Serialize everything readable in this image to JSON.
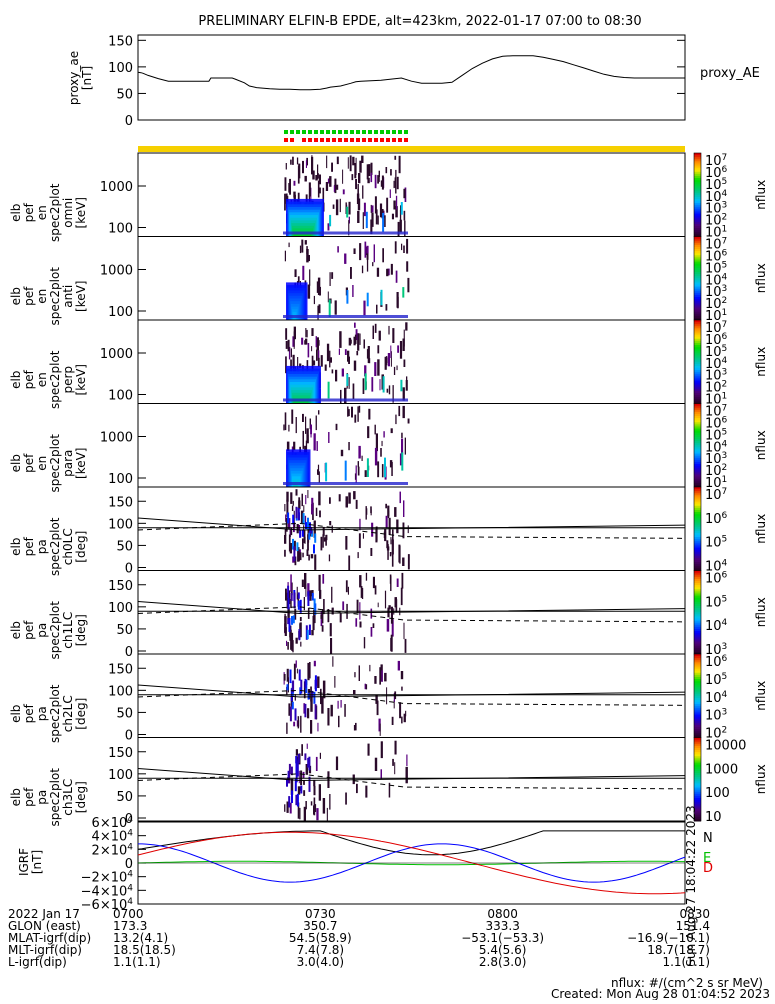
{
  "title": "PRELIMINARY ELFIN-B EPDE, alt=423km, 2022-01-17 07:00 to 08:30",
  "chart_data": [
    {
      "type": "line",
      "panel": "proxy_ae",
      "ylabel": [
        "proxy_ae",
        "[nT]"
      ],
      "legend": "proxy_AE",
      "yticks": [
        "0",
        "50",
        "100",
        "150"
      ],
      "ylim": [
        0,
        160
      ],
      "x_minutes": [
        0,
        3,
        5,
        10,
        20,
        30,
        40,
        41,
        50,
        60,
        70,
        72,
        82,
        88,
        93,
        96,
        105,
        110,
        117,
        130,
        140,
        150,
        160,
        170,
        180,
        186,
        190,
        200,
        210,
        215,
        220,
        230,
        240,
        250,
        260,
        270,
        280,
        290,
        300,
        310,
        320,
        330,
        340,
        350,
        360,
        370,
        380,
        390,
        400,
        410,
        420,
        430,
        440,
        450,
        460,
        470,
        480,
        490,
        500,
        510,
        520,
        530,
        540
      ],
      "values": [
        90,
        89,
        88,
        84,
        78,
        73,
        73,
        73,
        73,
        73,
        73,
        79,
        79,
        79,
        79,
        77,
        70,
        64,
        61,
        59,
        58,
        58,
        57,
        57,
        58,
        60,
        62,
        64,
        69,
        72,
        73,
        74,
        75,
        77,
        79,
        73,
        69,
        69,
        69,
        71,
        84,
        97,
        107,
        115,
        120,
        121,
        121,
        121,
        118,
        114,
        110,
        104,
        98,
        92,
        86,
        82,
        80,
        79,
        79,
        79,
        79,
        79,
        79
      ]
    },
    {
      "type": "heatmap",
      "panels": [
        {
          "ylabel": [
            "elb",
            "pef",
            "en",
            "spec2plot",
            "omni",
            "[keV]"
          ],
          "yticks": [
            "100",
            "1000"
          ],
          "cbar_ticks": [
            "10^7",
            "10^6",
            "10^5",
            "10^4",
            "10^3",
            "10^2",
            "10^1"
          ],
          "cbar_label": "nflux",
          "intensity": 1.0
        },
        {
          "ylabel": [
            "elb",
            "pef",
            "en",
            "spec2plot",
            "anti",
            "[keV]"
          ],
          "yticks": [
            "100",
            "1000"
          ],
          "cbar_ticks": [
            "10^7",
            "10^6",
            "10^5",
            "10^4",
            "10^3",
            "10^2",
            "10^1"
          ],
          "cbar_label": "nflux",
          "intensity": 0.45
        },
        {
          "ylabel": [
            "elb",
            "pef",
            "en",
            "spec2plot",
            "perp",
            "[keV]"
          ],
          "yticks": [
            "100",
            "1000"
          ],
          "cbar_ticks": [
            "10^7",
            "10^6",
            "10^5",
            "10^4",
            "10^3",
            "10^2",
            "10^1"
          ],
          "cbar_label": "nflux",
          "intensity": 0.9
        },
        {
          "ylabel": [
            "elb",
            "pef",
            "en",
            "spec2plot",
            "para",
            "[keV]"
          ],
          "yticks": [
            "100",
            "1000"
          ],
          "cbar_ticks": [
            "10^7",
            "10^6",
            "10^5",
            "10^4",
            "10^3",
            "10^2",
            "10^1"
          ],
          "cbar_label": "nflux",
          "intensity": 0.55
        },
        {
          "ylabel": [
            "elb",
            "pef",
            "pa",
            "spec2plot",
            "ch0LC",
            "[deg]"
          ],
          "yticks": [
            "0",
            "50",
            "100",
            "150"
          ],
          "cbar_ticks": [
            "10^7",
            "10^6",
            "10^5",
            "10^4"
          ],
          "cbar_label": "nflux",
          "intensity": 0.8
        },
        {
          "ylabel": [
            "elb",
            "pef",
            "pa",
            "spec2plot",
            "ch1LC",
            "[deg]"
          ],
          "yticks": [
            "0",
            "50",
            "100",
            "150"
          ],
          "cbar_ticks": [
            "10^6",
            "10^5",
            "10^4",
            "10^3"
          ],
          "cbar_label": "nflux",
          "intensity": 0.7
        },
        {
          "ylabel": [
            "elb",
            "pef",
            "pa",
            "spec2plot",
            "ch2LC",
            "[deg]"
          ],
          "yticks": [
            "0",
            "50",
            "100",
            "150"
          ],
          "cbar_ticks": [
            "10^6",
            "10^5",
            "10^4",
            "10^3",
            "10^2"
          ],
          "cbar_label": "nflux",
          "intensity": 0.55
        },
        {
          "ylabel": [
            "elb",
            "pef",
            "pa",
            "spec2plot",
            "ch3LC",
            "[deg]"
          ],
          "yticks": [
            "0",
            "50",
            "100",
            "150"
          ],
          "cbar_ticks": [
            "10000",
            "1000",
            "100",
            "10"
          ],
          "cbar_label": "nflux",
          "intensity": 0.35
        }
      ]
    },
    {
      "type": "line",
      "panel": "IGRF",
      "ylabel": [
        "IGRF",
        "[nT]"
      ],
      "yticks": [
        "6×10^4",
        "4×10^4",
        "2×10^4",
        "0",
        "−2×10^4",
        "−4×10^4",
        "−6×10^4"
      ],
      "ylim": [
        -60000,
        60000
      ],
      "series": [
        {
          "name": "N",
          "color": "#000000"
        },
        {
          "name": "E",
          "color": "#00c000"
        },
        {
          "name": "D",
          "color": "#e00000"
        },
        {
          "color": "#0000ff"
        }
      ]
    }
  ],
  "colors": {
    "ephem_bar": "#f6d000",
    "ephem_green": "#00cc00",
    "ephem_red": "#ff0000"
  },
  "footer": {
    "rows": [
      {
        "label": "2022 Jan 17",
        "values": [
          "0700",
          "0730",
          "0800",
          "0830"
        ]
      },
      {
        "label": "GLON (east)",
        "values": [
          "173.3",
          "350.7",
          "333.3",
          "151.4"
        ]
      },
      {
        "label": "MLAT-igrf(dip)",
        "values": [
          "13.2(4.1)",
          "54.5(58.9)",
          "−53.1(−53.3)",
          "−16.9(−10.1)"
        ]
      },
      {
        "label": "MLT-igrf(dip)",
        "values": [
          "18.5(18.5)",
          "7.4(7.8)",
          "5.4(5.6)",
          "18.7(18.7)"
        ]
      },
      {
        "label": "L-igrf(dip)",
        "values": [
          "1.1(1.1)",
          "3.0(4.0)",
          "2.8(3.0)",
          "1.1(1.1)"
        ]
      }
    ],
    "units_note": "nflux: #/(cm^2 s sr MeV)",
    "created": "Created: Mon Aug 28 01:04:52 2023",
    "side_note": "Sun Aug 27 18:04:22 2023"
  }
}
